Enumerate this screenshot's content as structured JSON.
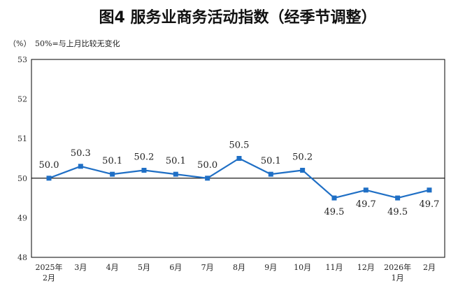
{
  "chart_data": {
    "type": "line",
    "title": "图4  服务业商务活动指数（经季节调整）",
    "unit_label": "（%）",
    "note": "50%=与上月比较无变化",
    "ylim": [
      48,
      53
    ],
    "y_ticks": [
      "48",
      "49",
      "50",
      "51",
      "52",
      "53"
    ],
    "reference_value": 50,
    "categories": [
      [
        "2025年",
        "2月"
      ],
      [
        "3月"
      ],
      [
        "4月"
      ],
      [
        "5月"
      ],
      [
        "6月"
      ],
      [
        "7月"
      ],
      [
        "8月"
      ],
      [
        "9月"
      ],
      [
        "10月"
      ],
      [
        "11月"
      ],
      [
        "12月"
      ],
      [
        "2026年",
        "1月"
      ],
      [
        "2月"
      ]
    ],
    "values": [
      50.0,
      50.3,
      50.1,
      50.2,
      50.1,
      50.0,
      50.5,
      50.1,
      50.2,
      49.5,
      49.7,
      49.5,
      49.7
    ],
    "value_labels": [
      "50.0",
      "50.3",
      "50.1",
      "50.2",
      "50.1",
      "50.0",
      "50.5",
      "50.1",
      "50.2",
      "49.5",
      "49.7",
      "49.5",
      "49.7"
    ],
    "label_positions": [
      "above",
      "above",
      "above",
      "above",
      "above",
      "above",
      "above",
      "above",
      "above",
      "below",
      "below",
      "below",
      "below"
    ],
    "grid": false,
    "legend": "none",
    "colors": {
      "series": "#1f6fc5",
      "reference": "#000000",
      "frame": "#000000"
    }
  }
}
